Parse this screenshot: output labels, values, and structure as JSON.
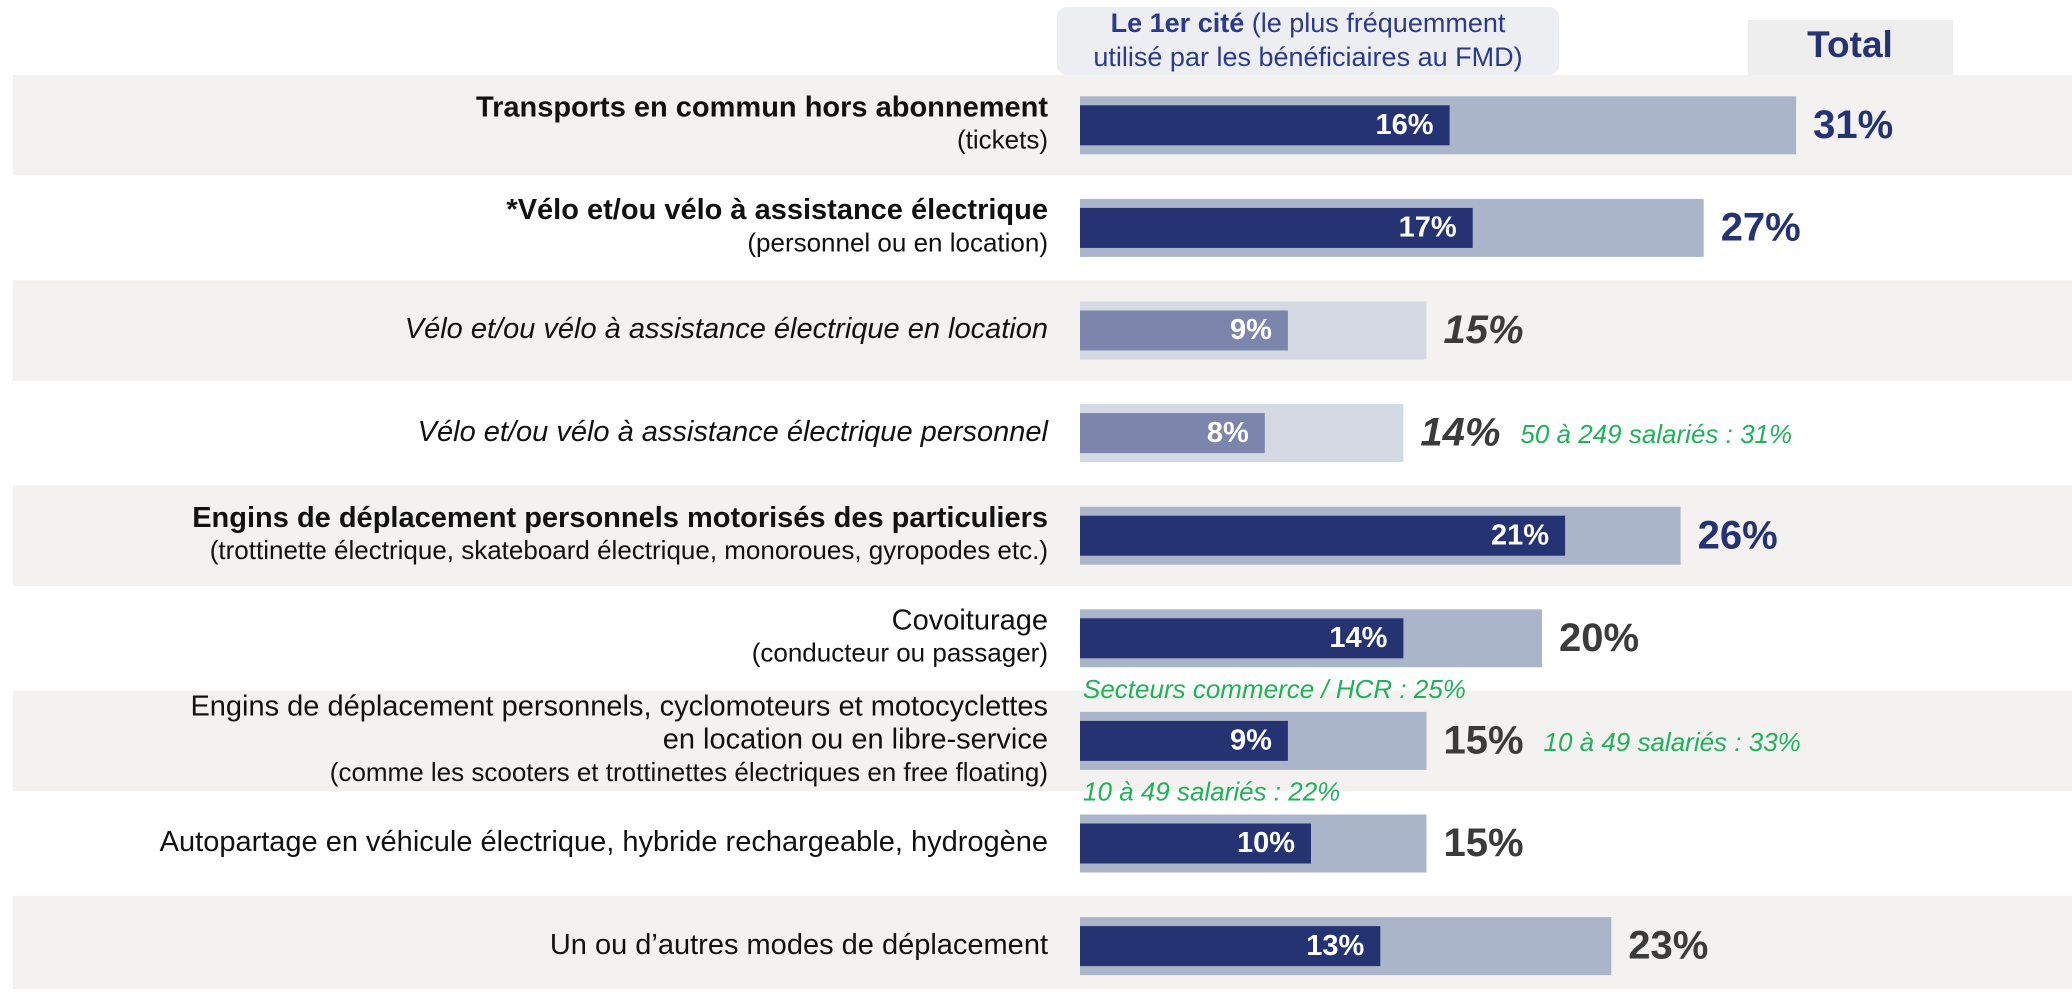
{
  "chart_data": {
    "type": "bar",
    "categories": [
      [
        "Transports en commun hors abonnement",
        "(tickets)"
      ],
      [
        "*Vélo et/ou vélo à assistance électrique",
        "(personnel ou en location)"
      ],
      [
        "Vélo et/ou vélo à assistance électrique en location"
      ],
      [
        "Vélo et/ou vélo à assistance électrique personnel"
      ],
      [
        "Engins de déplacement personnels motorisés des particuliers",
        "(trottinette électrique, skateboard électrique, monoroues, gyropodes etc.)"
      ],
      [
        "Covoiturage",
        "(conducteur ou passager)"
      ],
      [
        "Engins de déplacement personnels, cyclomoteurs et motocyclettes",
        "en location ou en libre-service",
        "(comme les scooters et trottinettes électriques en free floating)"
      ],
      [
        "Autopartage en véhicule électrique, hybride rechargeable, hydrogène"
      ],
      [
        "Un ou d’autres modes de déplacement"
      ]
    ],
    "emphasis": [
      "bold",
      "bold",
      "italic",
      "italic",
      "bold",
      "normal",
      "normal",
      "normal",
      "normal"
    ],
    "series": [
      {
        "name": "Le 1er cité",
        "name_note": "(le plus fréquemment",
        "name_note2": "utilisé par les bénéficiaires au FMD)",
        "color": "#263372",
        "muted_color": "#7c86ad",
        "values": [
          16,
          17,
          9,
          8,
          21,
          14,
          9,
          10,
          13
        ],
        "value_labels": [
          "16%",
          "17%",
          "9%",
          "8%",
          "21%",
          "14%",
          "9%",
          "10%",
          "13%"
        ]
      },
      {
        "name": "Total",
        "color": "#abb5c9",
        "muted_color": "#d4d9e4",
        "values": [
          31,
          27,
          15,
          14,
          26,
          20,
          15,
          15,
          23
        ],
        "value_labels": [
          "31%",
          "27%",
          "15%",
          "14%",
          "26%",
          "20%",
          "15%",
          "15%",
          "23%"
        ]
      }
    ],
    "annotations": [
      {
        "category": 3,
        "placement": "right",
        "text": "50 à 249 salariés : 31%"
      },
      {
        "category": 6,
        "placement": "above",
        "text": "Secteurs commerce / HCR : 25%"
      },
      {
        "category": 6,
        "placement": "right",
        "text": "10 à 49 salariés : 33%"
      },
      {
        "category": 7,
        "placement": "above",
        "text": "10 à 49 salariés : 22%"
      }
    ]
  }
}
